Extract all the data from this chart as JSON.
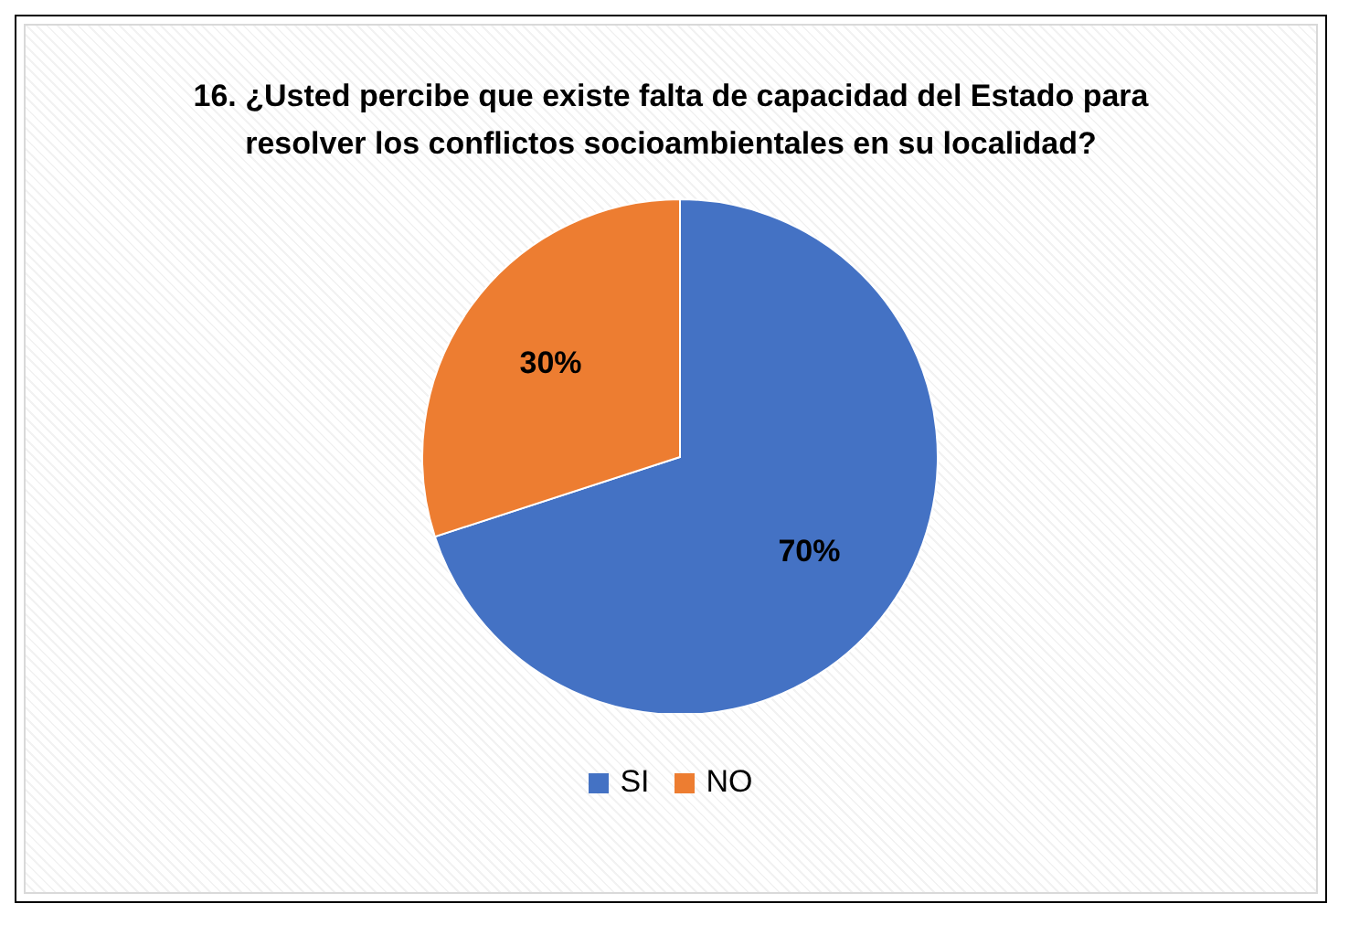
{
  "chart_data": {
    "type": "pie",
    "title": "16. ¿Usted percibe que existe falta de capacidad del Estado para resolver los conflictos socioambientales en su localidad?",
    "categories": [
      "SI",
      "NO"
    ],
    "values": [
      70,
      30
    ],
    "colors": [
      "#4472c4",
      "#ed7d31"
    ],
    "value_labels": [
      "70%",
      "30%"
    ],
    "legend": "bottom"
  }
}
